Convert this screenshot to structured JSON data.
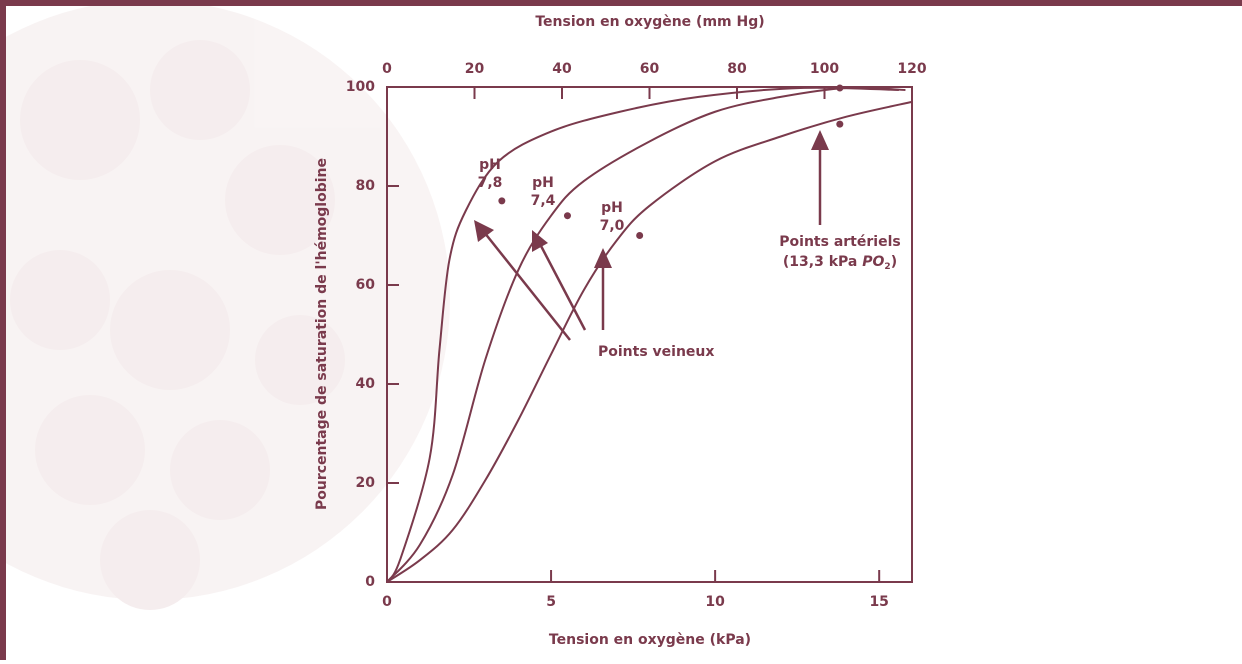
{
  "chart_data": {
    "type": "line",
    "x_label": "Tension en oxygène (kPa)",
    "x2_label": "Tension en oxygène (mm Hg)",
    "y_label": "Pourcentage de saturation de l'hémoglobine",
    "xlim": [
      0,
      16
    ],
    "xticks": [
      0,
      5,
      10,
      15
    ],
    "x2lim": [
      0,
      120
    ],
    "x2ticks": [
      0,
      20,
      40,
      60,
      80,
      100,
      120
    ],
    "ylim": [
      0,
      100
    ],
    "yticks": [
      0,
      20,
      40,
      60,
      80,
      100
    ],
    "grid": false,
    "color": "#7a3a4c",
    "series": [
      {
        "label": [
          "pH",
          "7,8"
        ],
        "type": "line",
        "x": [
          0,
          0.4,
          1.3,
          1.6,
          1.9,
          2.4,
          3.4,
          5,
          7.1,
          9.5,
          12.6,
          15.6
        ],
        "values": [
          0,
          4.5,
          25,
          47,
          65,
          75,
          85,
          91,
          95,
          98,
          99.8,
          99.4
        ]
      },
      {
        "label": [
          "pH",
          "7,4"
        ],
        "type": "line",
        "x": [
          0,
          1,
          2,
          3,
          4,
          5,
          6,
          8,
          10,
          12,
          14,
          15.8
        ],
        "values": [
          0,
          7.5,
          21.6,
          45,
          63,
          74,
          81,
          89,
          95,
          98,
          99.8,
          99.4
        ]
      },
      {
        "label": [
          "pH",
          "7,0"
        ],
        "type": "line",
        "x": [
          0,
          1,
          2,
          3,
          4,
          5,
          6,
          7,
          8,
          10,
          12,
          14,
          16
        ],
        "values": [
          0,
          4.4,
          10.5,
          20.6,
          32.7,
          46,
          59,
          69,
          76,
          85,
          90,
          94,
          97
        ]
      },
      {
        "name": "Points veineux",
        "type": "scatter",
        "x": [
          3.5,
          5.5,
          7.7
        ],
        "values": [
          77,
          74,
          70
        ]
      },
      {
        "name": "Points artériels",
        "label_detail": [
          "(13,3 kPa ",
          "PO",
          "2",
          ")"
        ],
        "type": "scatter",
        "x": [
          13.8,
          13.8
        ],
        "values": [
          99.8,
          92.5
        ]
      }
    ]
  }
}
